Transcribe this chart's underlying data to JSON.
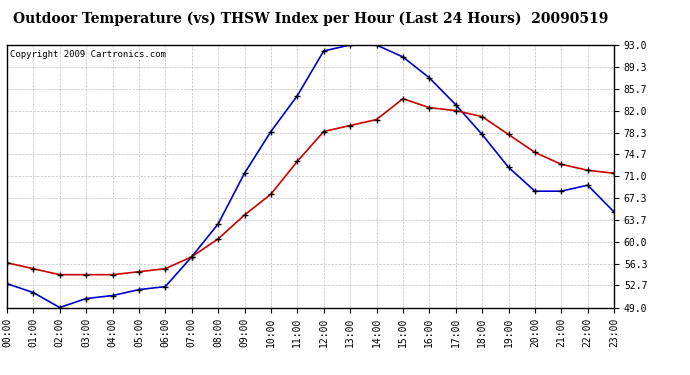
{
  "title": "Outdoor Temperature (vs) THSW Index per Hour (Last 24 Hours)  20090519",
  "copyright": "Copyright 2009 Cartronics.com",
  "hours": [
    "00:00",
    "01:00",
    "02:00",
    "03:00",
    "04:00",
    "05:00",
    "06:00",
    "07:00",
    "08:00",
    "09:00",
    "10:00",
    "11:00",
    "12:00",
    "13:00",
    "14:00",
    "15:00",
    "16:00",
    "17:00",
    "18:00",
    "19:00",
    "20:00",
    "21:00",
    "22:00",
    "23:00"
  ],
  "temp": [
    56.5,
    55.5,
    54.5,
    54.5,
    54.5,
    55.0,
    55.5,
    57.5,
    60.5,
    64.5,
    68.0,
    73.5,
    78.5,
    79.5,
    80.5,
    84.0,
    82.5,
    82.0,
    81.0,
    78.0,
    75.0,
    73.0,
    72.0,
    71.5
  ],
  "thsw": [
    53.0,
    51.5,
    49.0,
    50.5,
    51.0,
    52.0,
    52.5,
    57.5,
    63.0,
    71.5,
    78.5,
    84.5,
    92.0,
    93.0,
    93.0,
    91.0,
    87.5,
    83.0,
    78.0,
    72.5,
    68.5,
    68.5,
    69.5,
    65.0
  ],
  "temp_color": "#cc0000",
  "thsw_color": "#0000cc",
  "ylim_min": 49.0,
  "ylim_max": 93.0,
  "yticks": [
    49.0,
    52.7,
    56.3,
    60.0,
    63.7,
    67.3,
    71.0,
    74.7,
    78.3,
    82.0,
    85.7,
    89.3,
    93.0
  ],
  "background_color": "#ffffff",
  "plot_bg_color": "#ffffff",
  "grid_color": "#bbbbbb",
  "title_fontsize": 10,
  "tick_fontsize": 7,
  "copyright_fontsize": 6.5,
  "marker": "+"
}
